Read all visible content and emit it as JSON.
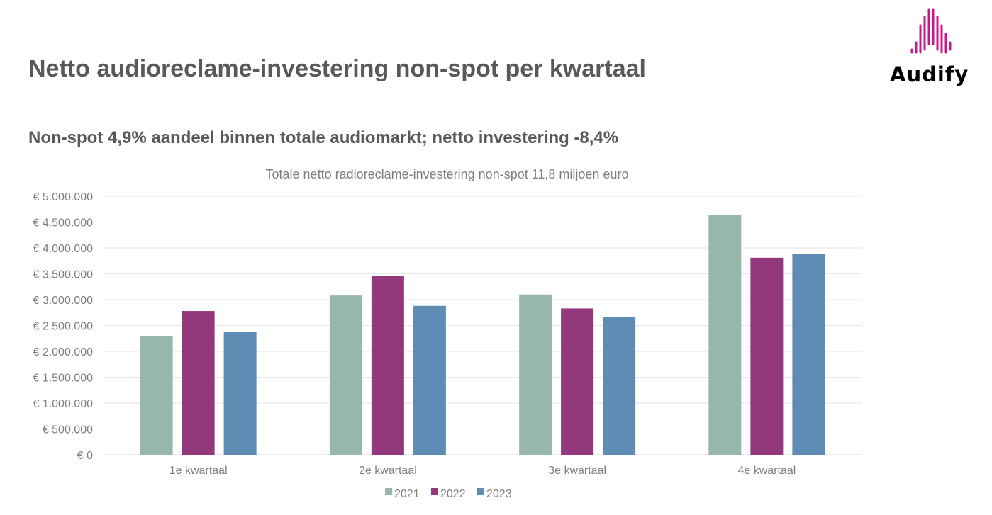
{
  "header": {
    "title": "Netto audioreclame-investering non-spot per kwartaal",
    "subtitle": "Non-spot 4,9% aandeel binnen totale audiomarkt; netto investering -8,4%"
  },
  "logo": {
    "text": "Audify",
    "icon": "soundwave-icon",
    "color": "#c8168b"
  },
  "chart_data": {
    "type": "bar",
    "title": "Totale netto radioreclame-investering non-spot 11,8 miljoen euro",
    "categories": [
      "1e kwartaal",
      "2e kwartaal",
      "3e kwartaal",
      "4e kwartaal"
    ],
    "series": [
      {
        "name": "2021",
        "color": "#97b7ab",
        "values": [
          2290000,
          3080000,
          3100000,
          4640000
        ]
      },
      {
        "name": "2022",
        "color": "#93387c",
        "values": [
          2780000,
          3460000,
          2830000,
          3810000
        ]
      },
      {
        "name": "2023",
        "color": "#5f8cb4",
        "values": [
          2370000,
          2880000,
          2660000,
          3890000
        ]
      }
    ],
    "ylim": [
      0,
      5000000
    ],
    "yticks": [
      "€ 0",
      "€ 500.000",
      "€ 1.000.000",
      "€ 1.500.000",
      "€ 2.000.000",
      "€ 2.500.000",
      "€ 3.000.000",
      "€ 3.500.000",
      "€ 4.000.000",
      "€ 4.500.000",
      "€ 5.000.000"
    ],
    "grid": true,
    "legend": "bottom"
  }
}
